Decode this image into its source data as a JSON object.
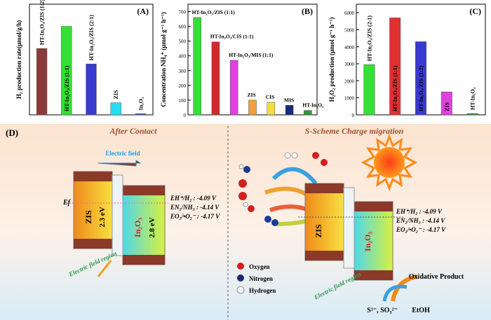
{
  "chart_data": [
    {
      "type": "bar",
      "panel": "(A)",
      "ylabel": "H₂ production rate(μmol/g/h)",
      "categories": [
        "HT-In₂O₃/ZIS (1:2)",
        "HT-In₂O₃/ZIS (1:1)",
        "HT-In₂O₃/ZIS (2:1)",
        "ZIS",
        "In₂O₃"
      ],
      "values": [
        0.6,
        0.8,
        0.46,
        0.11,
        0.01
      ],
      "colors": [
        "#8b3a3a",
        "#33e033",
        "#3a3ad0",
        "#22e0f0",
        "#2a4fb0"
      ],
      "ylim": [
        0,
        1
      ],
      "label_style": "vertical"
    },
    {
      "type": "bar",
      "panel": "(B)",
      "ylabel": "Concentration NH₄⁺ (μmol g⁻¹ h⁻¹)",
      "categories": [
        "HT-In₂O₃/ZIS (1:1)",
        "HT-In₂O₃/CIS (1:1)",
        "HT-In₂O₃/MIS (1:1)",
        "ZIS",
        "CIS",
        "MIS",
        "HT-In₂O₃"
      ],
      "values": [
        660,
        495,
        370,
        100,
        85,
        65,
        30
      ],
      "colors": [
        "#33e033",
        "#d02a2a",
        "#e040e0",
        "#f0a040",
        "#f0e040",
        "#1a2a7a",
        "#2a9a3a"
      ],
      "ylim": [
        0,
        750
      ],
      "yticks": [
        0,
        100,
        200,
        300,
        400,
        500,
        600,
        700
      ],
      "label_style": "horizontal"
    },
    {
      "type": "bar",
      "panel": "(C)",
      "ylabel": "H₂O₂ production (μmol g⁻¹ h⁻¹)",
      "categories": [
        "HT-In₂O₃/ZIS (2:1)",
        "HT-In₂O₃/ZIS (1:1)",
        "HT-In₂O₃/ZIS (1:2)",
        "ZIS",
        "HT-In₂O₃"
      ],
      "values": [
        2950,
        5700,
        4300,
        1350,
        80
      ],
      "colors": [
        "#33e033",
        "#e03030",
        "#3a3ad0",
        "#e040e0",
        "#2a9a3a"
      ],
      "ylim": [
        0,
        6500
      ],
      "yticks": [
        0,
        1000,
        2000,
        3000,
        4000,
        5000,
        6000
      ],
      "label_style": "vertical"
    }
  ],
  "diagram": {
    "panel": "(D)",
    "left": {
      "title": "After Contact",
      "electric_field": "Electric field",
      "fermi": "Ef",
      "zis": "ZIS",
      "zis_gap": "2.3 eV",
      "in2o3": "In₂O₃",
      "in2o3_gap": "2.8 eV",
      "potentials": [
        "EH⁺/H₂ : -4.09 V",
        "EN₂/NH₃ : -4.14 V",
        "EO₂/•O₂⁻ : -4.17 V"
      ],
      "region": "Electric field region"
    },
    "right": {
      "title": "S-Scheme Charge migration",
      "zis": "ZIS",
      "in2o3": "In₂O₃",
      "potentials": [
        "EH⁺/H₂ : -4.09 V",
        "EN₂/NH₃ : -4.14 V",
        "EO₂/•O₂⁻ : -4.17 V"
      ],
      "region": "Electric field region",
      "legend": [
        "Oxygen",
        "Nitrogen",
        "Hydrogen"
      ],
      "product": "Oxidative Product",
      "sacrificial": "S²⁻, SO₃²⁻",
      "etoh": "EtOH"
    }
  }
}
